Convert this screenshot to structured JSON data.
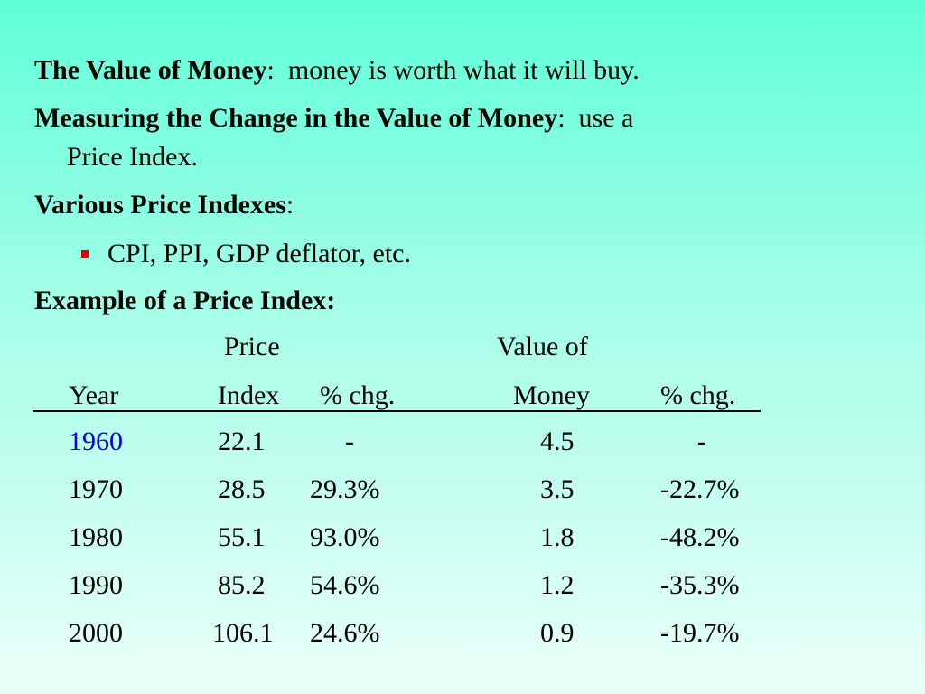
{
  "p1": {
    "title": "The Value of Money",
    "sep": ":",
    "text": "  money is worth what it will buy."
  },
  "p2": {
    "title": "Measuring the Change in the Value of Money",
    "sep": ":",
    "text": "  use a",
    "cont": "Price Index."
  },
  "p3": {
    "title": "Various Price Indexes",
    "sep": ":"
  },
  "bullet": {
    "text": "CPI, PPI, GDP deflator, etc."
  },
  "p4": {
    "title": "Example of a Price Index:"
  },
  "table": {
    "header_top": {
      "price": "Price",
      "value": "Value of"
    },
    "header": {
      "year": "Year",
      "index": "Index",
      "chg1": "% chg.",
      "money": "Money",
      "chg2": "% chg."
    },
    "rows": [
      {
        "year": "1960",
        "index": "22.1",
        "chg1": "-",
        "money": "4.5",
        "chg2": "-"
      },
      {
        "year": "1970",
        "index": "28.5",
        "chg1": "29.3%",
        "money": "3.5",
        "chg2": "-22.7%"
      },
      {
        "year": "1980",
        "index": "55.1",
        "chg1": "93.0%",
        "money": "1.8",
        "chg2": "-48.2%"
      },
      {
        "year": "1990",
        "index": "85.2",
        "chg1": "54.6%",
        "money": "1.2",
        "chg2": "-35.3%"
      },
      {
        "year": "2000",
        "index": "106.1",
        "chg1": "24.6%",
        "money": "0.9",
        "chg2": "-19.7%"
      }
    ]
  },
  "colors": {
    "highlight_year": "#0000dd",
    "bullet": "#e00000"
  }
}
